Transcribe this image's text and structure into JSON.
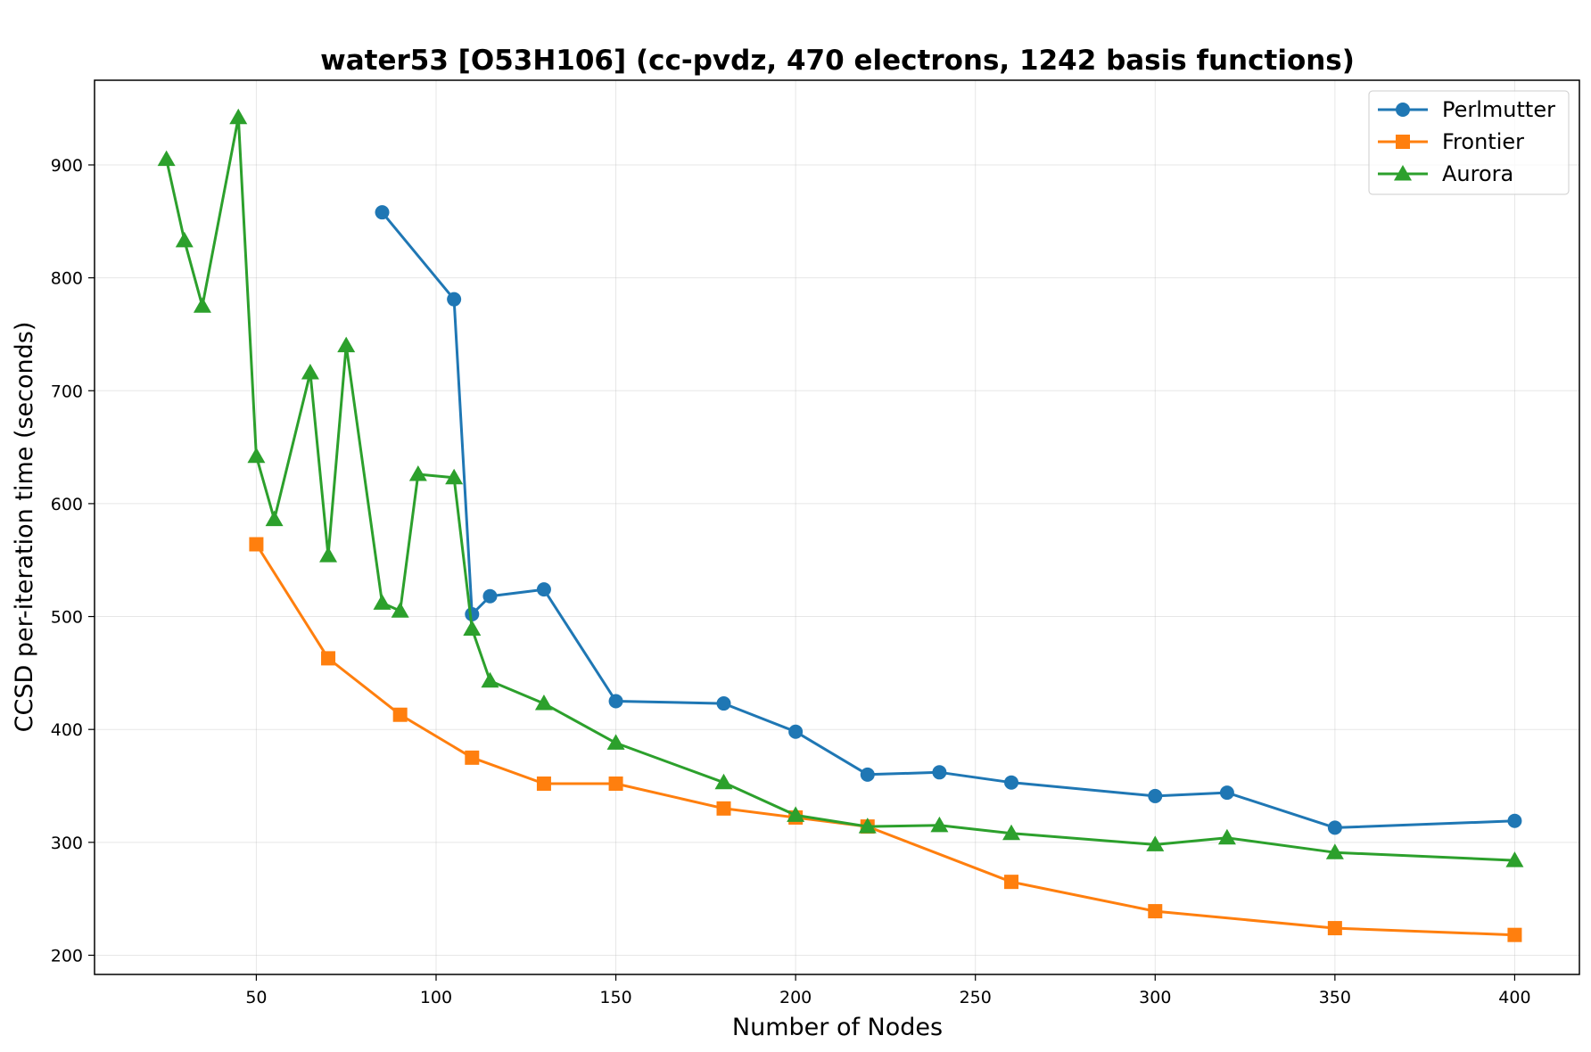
{
  "chart_data": {
    "type": "line",
    "title": "water53 [O53H106] (cc-pvdz, 470 electrons, 1242 basis functions)",
    "xlabel": "Number of Nodes",
    "ylabel": "CCSD per-iteration time (seconds)",
    "xlim": [
      5,
      418
    ],
    "ylim": [
      183,
      975
    ],
    "xticks": [
      50,
      100,
      150,
      200,
      250,
      300,
      350,
      400
    ],
    "yticks": [
      200,
      300,
      400,
      500,
      600,
      700,
      800,
      900
    ],
    "grid": true,
    "legend_position": "top-right",
    "series": [
      {
        "name": "Perlmutter",
        "color": "#1f77b4",
        "marker": "circle",
        "x": [
          85,
          105,
          110,
          115,
          130,
          150,
          180,
          200,
          220,
          240,
          260,
          300,
          320,
          350,
          400
        ],
        "y": [
          858,
          781,
          502,
          518,
          524,
          425,
          423,
          398,
          360,
          362,
          353,
          341,
          344,
          313,
          319
        ]
      },
      {
        "name": "Frontier",
        "color": "#ff7f0e",
        "marker": "square",
        "x": [
          50,
          70,
          90,
          110,
          130,
          150,
          180,
          200,
          220,
          260,
          300,
          350,
          400
        ],
        "y": [
          564,
          463,
          413,
          375,
          352,
          352,
          330,
          322,
          314,
          265,
          239,
          224,
          218
        ]
      },
      {
        "name": "Aurora",
        "color": "#2ca02c",
        "marker": "triangle",
        "x": [
          25,
          30,
          35,
          45,
          50,
          55,
          65,
          70,
          75,
          85,
          90,
          95,
          105,
          110,
          115,
          130,
          150,
          180,
          200,
          220,
          240,
          260,
          300,
          320,
          350,
          400
        ],
        "y": [
          905,
          833,
          775,
          942,
          642,
          586,
          716,
          554,
          740,
          512,
          505,
          626,
          623,
          489,
          443,
          423,
          388,
          353,
          324,
          314,
          315,
          308,
          298,
          304,
          291,
          284
        ]
      }
    ]
  }
}
